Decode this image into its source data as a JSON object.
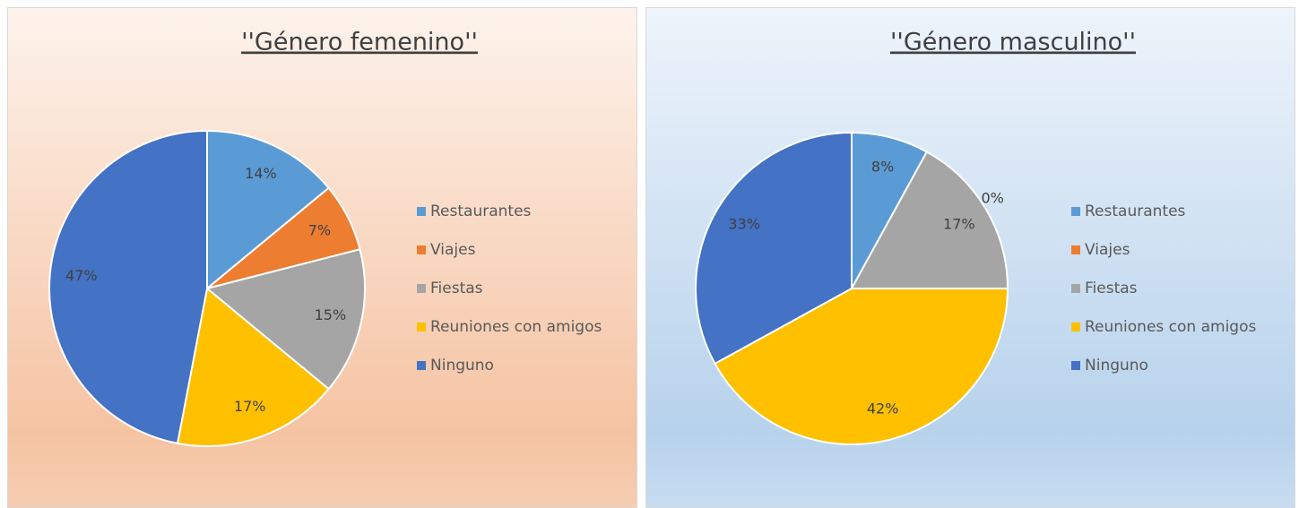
{
  "chart_data": [
    {
      "type": "pie",
      "title": "''Género femenino''",
      "categories": [
        "Restaurantes",
        "Viajes",
        "Fiestas",
        "Reuniones con amigos",
        "Ninguno"
      ],
      "values": [
        14,
        7,
        15,
        17,
        47
      ],
      "value_labels": [
        "14%",
        "7%",
        "15%",
        "17%",
        "47%"
      ],
      "colors": [
        "#5b9bd5",
        "#ed7d31",
        "#a5a5a5",
        "#ffc000",
        "#4472c4"
      ],
      "legend": "right"
    },
    {
      "type": "pie",
      "title": "''Género masculino''",
      "categories": [
        "Restaurantes",
        "Viajes",
        "Fiestas",
        "Reuniones con amigos",
        "Ninguno"
      ],
      "values": [
        8,
        0,
        17,
        42,
        33
      ],
      "value_labels": [
        "8%",
        "0%",
        "17%",
        "42%",
        "33%"
      ],
      "colors": [
        "#5b9bd5",
        "#ed7d31",
        "#a5a5a5",
        "#ffc000",
        "#4472c4"
      ],
      "legend": "right"
    }
  ]
}
